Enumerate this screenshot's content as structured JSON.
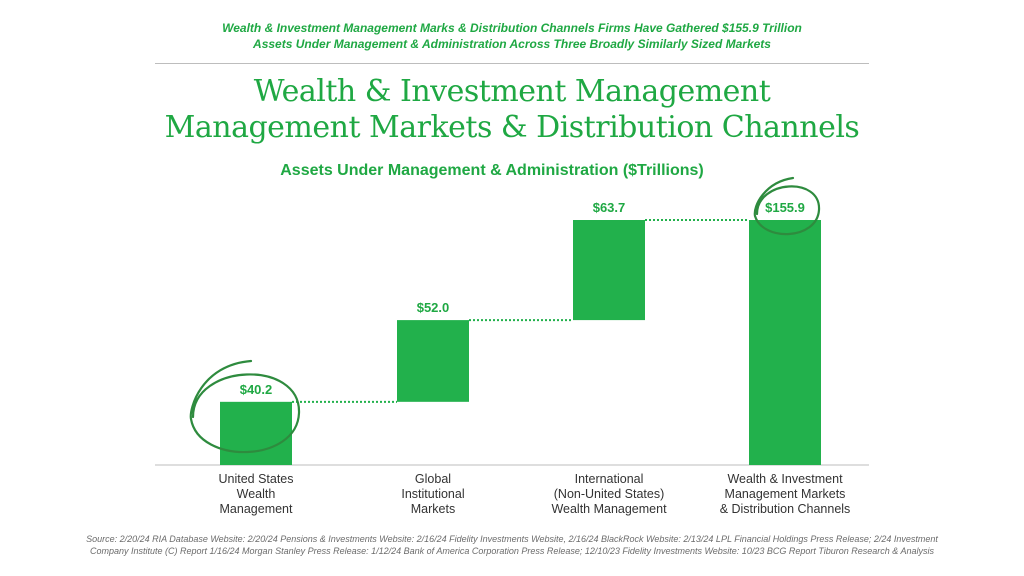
{
  "header": {
    "subtitle_line1": "Wealth & Investment Management Marks & Distribution Channels Firms Have Gathered $155.9 Trillion",
    "subtitle_line2": "Assets Under Management & Administration Across Three Broadly Similarly Sized Markets",
    "title_line1": "Wealth & Investment Management",
    "title_line2": "Management Markets & Distribution Channels",
    "axis_caption": "Assets Under Management & Administration ($Trillions)"
  },
  "colors": {
    "accent": "#1fa843",
    "bar": "#22b14c",
    "text": "#333333",
    "muted": "#6b6b6b"
  },
  "chart_data": {
    "type": "bar",
    "subtype": "waterfall",
    "title": "Wealth & Investment Management Management Markets & Distribution Channels",
    "ylabel": "Assets Under Management & Administration ($Trillions)",
    "categories": [
      [
        "United States",
        "Wealth",
        "Management"
      ],
      [
        "Global",
        "Institutional",
        "Markets"
      ],
      [
        "International",
        "(Non-United States)",
        "Wealth Management"
      ],
      [
        "Wealth & Investment",
        "Management Markets",
        "& Distribution Channels"
      ]
    ],
    "values": [
      40.2,
      52.0,
      63.7,
      155.9
    ],
    "value_labels": [
      "$40.2",
      "$52.0",
      "$63.7",
      "$155.9"
    ],
    "ylim": [
      0,
      155.9
    ],
    "grid": false,
    "highlighted": [
      "$40.2",
      "$155.9"
    ]
  },
  "footer": {
    "source_line1": "Source: 2/20/24 RIA Database Website: 2/20/24 Pensions & Investments Website: 2/16/24 Fidelity Investments Website, 2/16/24 BlackRock Website: 2/13/24 LPL Financial Holdings Press Release; 2/24 Investment",
    "source_line2": "Company Institute (C) Report 1/16/24 Morgan Stanley Press Release: 1/12/24 Bank of America Corporation Press Release; 12/10/23 Fidelity Investments Website: 10/23 BCG Report Tiburon Research & Analysis"
  }
}
